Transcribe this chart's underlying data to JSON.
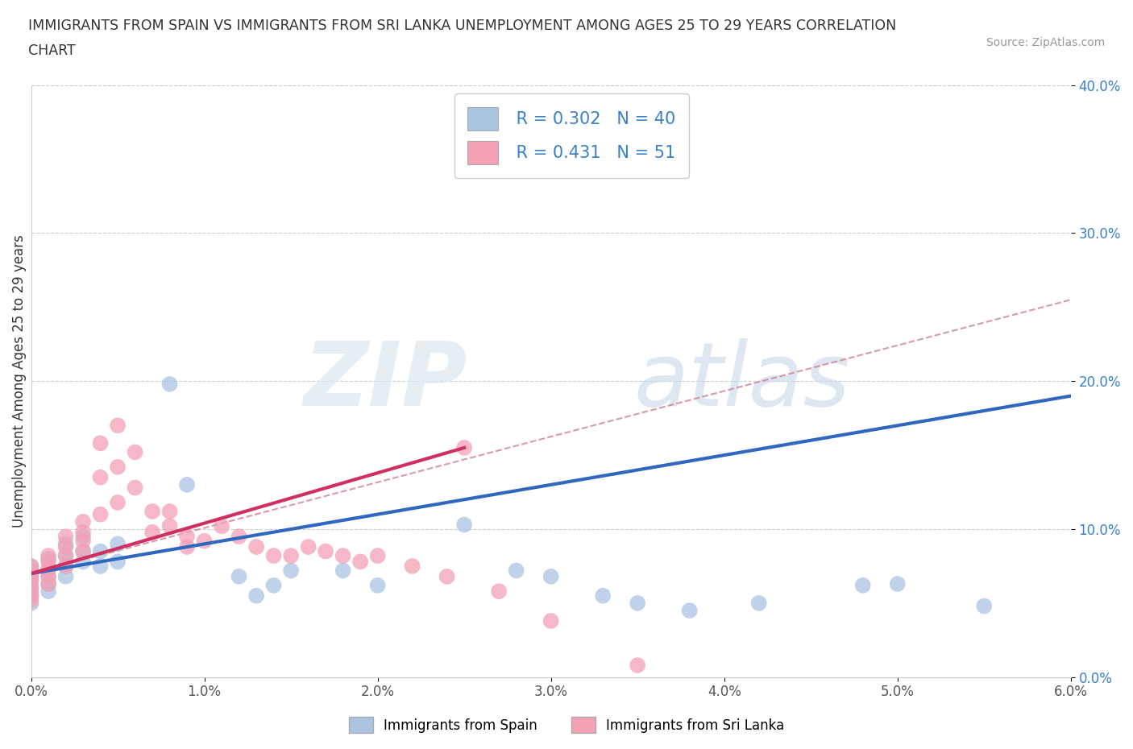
{
  "title_line1": "IMMIGRANTS FROM SPAIN VS IMMIGRANTS FROM SRI LANKA UNEMPLOYMENT AMONG AGES 25 TO 29 YEARS CORRELATION",
  "title_line2": "CHART",
  "source": "Source: ZipAtlas.com",
  "ylabel": "Unemployment Among Ages 25 to 29 years",
  "xlim": [
    0.0,
    0.06
  ],
  "ylim": [
    0.0,
    0.4
  ],
  "xticks": [
    0.0,
    0.01,
    0.02,
    0.03,
    0.04,
    0.05,
    0.06
  ],
  "xticklabels": [
    "0.0%",
    "1.0%",
    "2.0%",
    "3.0%",
    "4.0%",
    "5.0%",
    "6.0%"
  ],
  "yticks": [
    0.0,
    0.1,
    0.2,
    0.3,
    0.4
  ],
  "yticklabels": [
    "0.0%",
    "10.0%",
    "20.0%",
    "30.0%",
    "40.0%"
  ],
  "spain_color": "#aac4e2",
  "srilanka_color": "#f4a0b5",
  "spain_line_color": "#3068c0",
  "srilanka_line_color": "#d03060",
  "ref_line_color": "#d08090",
  "legend_R_spain": "0.302",
  "legend_N_spain": "40",
  "legend_R_srilanka": "0.431",
  "legend_N_srilanka": "51",
  "spain_trend_x0": 0.0,
  "spain_trend_x1": 0.06,
  "spain_trend_y0": 0.07,
  "spain_trend_y1": 0.19,
  "srilanka_trend_x0": 0.0,
  "srilanka_trend_x1": 0.025,
  "srilanka_trend_y0": 0.07,
  "srilanka_trend_y1": 0.155,
  "ref_line_x0": 0.0,
  "ref_line_x1": 0.06,
  "ref_line_y0": 0.07,
  "ref_line_y1": 0.255,
  "spain_x": [
    0.0,
    0.0,
    0.0,
    0.0,
    0.0,
    0.0,
    0.001,
    0.001,
    0.001,
    0.001,
    0.001,
    0.002,
    0.002,
    0.002,
    0.002,
    0.003,
    0.003,
    0.003,
    0.004,
    0.004,
    0.005,
    0.005,
    0.008,
    0.009,
    0.012,
    0.013,
    0.014,
    0.015,
    0.018,
    0.02,
    0.025,
    0.028,
    0.03,
    0.033,
    0.035,
    0.038,
    0.042,
    0.048,
    0.05,
    0.055
  ],
  "spain_y": [
    0.075,
    0.068,
    0.062,
    0.058,
    0.055,
    0.05,
    0.08,
    0.073,
    0.068,
    0.063,
    0.058,
    0.09,
    0.082,
    0.075,
    0.068,
    0.095,
    0.085,
    0.078,
    0.085,
    0.075,
    0.09,
    0.078,
    0.198,
    0.13,
    0.068,
    0.055,
    0.062,
    0.072,
    0.072,
    0.062,
    0.103,
    0.072,
    0.068,
    0.055,
    0.05,
    0.045,
    0.05,
    0.062,
    0.063,
    0.048
  ],
  "srilanka_x": [
    0.0,
    0.0,
    0.0,
    0.0,
    0.0,
    0.0,
    0.0,
    0.001,
    0.001,
    0.001,
    0.001,
    0.001,
    0.002,
    0.002,
    0.002,
    0.002,
    0.003,
    0.003,
    0.003,
    0.003,
    0.004,
    0.004,
    0.004,
    0.005,
    0.005,
    0.005,
    0.006,
    0.006,
    0.007,
    0.007,
    0.008,
    0.008,
    0.009,
    0.009,
    0.01,
    0.011,
    0.012,
    0.013,
    0.014,
    0.015,
    0.016,
    0.017,
    0.018,
    0.019,
    0.02,
    0.022,
    0.024,
    0.025,
    0.027,
    0.03,
    0.035
  ],
  "srilanka_y": [
    0.075,
    0.072,
    0.068,
    0.065,
    0.06,
    0.056,
    0.052,
    0.082,
    0.078,
    0.073,
    0.068,
    0.063,
    0.095,
    0.088,
    0.082,
    0.075,
    0.105,
    0.098,
    0.092,
    0.085,
    0.158,
    0.135,
    0.11,
    0.17,
    0.142,
    0.118,
    0.152,
    0.128,
    0.112,
    0.098,
    0.112,
    0.102,
    0.095,
    0.088,
    0.092,
    0.102,
    0.095,
    0.088,
    0.082,
    0.082,
    0.088,
    0.085,
    0.082,
    0.078,
    0.082,
    0.075,
    0.068,
    0.155,
    0.058,
    0.038,
    0.008
  ]
}
